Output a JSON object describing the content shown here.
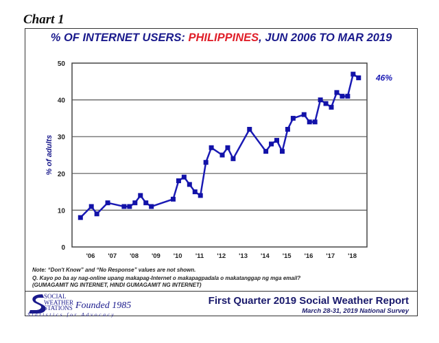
{
  "chart_label": "Chart 1",
  "chart_data": {
    "type": "line",
    "title_parts": [
      "% OF INTERNET USERS: ",
      "PHILIPPINES",
      ", JUN 2006 TO MAR 2019"
    ],
    "ylabel": "% of adults",
    "xlabel": "",
    "ylim": [
      0,
      50
    ],
    "yticks": [
      0,
      10,
      20,
      30,
      40,
      50
    ],
    "xtick_labels": [
      "'06",
      "'07",
      "'08",
      "'09",
      "'10",
      "'11",
      "'12",
      "'13",
      "'14",
      "'15",
      "'16",
      "'17",
      "'18"
    ],
    "grid": true,
    "line_color": "#1a1ab4",
    "title_color": "#1a1a8c",
    "highlight_color": "#e0202a",
    "end_label": "46%",
    "series": [
      {
        "x": [
          "2006-06",
          "2006-12",
          "2007-03",
          "2007-09",
          "2008-06",
          "2008-09",
          "2008-12",
          "2009-03",
          "2009-06",
          "2009-09",
          "2010-09",
          "2010-12",
          "2011-03",
          "2011-06",
          "2011-09",
          "2011-12",
          "2012-03",
          "2012-06",
          "2012-12",
          "2013-03",
          "2013-06",
          "2014-03",
          "2014-12",
          "2015-03",
          "2015-06",
          "2015-09",
          "2015-12",
          "2016-03",
          "2016-09",
          "2016-12",
          "2017-03",
          "2017-06",
          "2017-09",
          "2017-12",
          "2018-03",
          "2018-06",
          "2018-09",
          "2018-12",
          "2019-03"
        ],
        "values": [
          8,
          11,
          9,
          12,
          11,
          11,
          12,
          14,
          12,
          11,
          13,
          18,
          19,
          17,
          15,
          14,
          23,
          27,
          25,
          27,
          24,
          32,
          26,
          28,
          29,
          26,
          32,
          35,
          36,
          34,
          34,
          40,
          39,
          38,
          42,
          41,
          41,
          47,
          46
        ]
      }
    ]
  },
  "notes": {
    "note": "Note: “Don't Know” and “No Response” values are not shown.",
    "question": "Q. Kayo po ba ay nag-online upang makapag-Internet o makapagpadala o makatanggap ng mga email?",
    "options": "(GUMAGAMIT NG INTERNET, HINDI GUMAGAMIT NG INTERNET)"
  },
  "footer": {
    "logo_lines": [
      "SOCIAL",
      "WEATHER",
      "STATIONS"
    ],
    "founded": "Founded 1985",
    "tagline": "Statistics for Advocacy",
    "report_title": "First Quarter 2019 Social Weather Report",
    "survey": "March 28-31, 2019 National Survey"
  }
}
